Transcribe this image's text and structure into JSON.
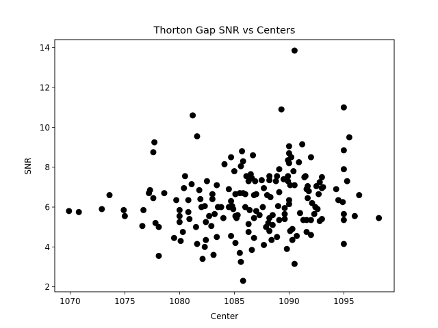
{
  "chart_data": {
    "type": "scatter",
    "title": "Thorton Gap SNR vs Centers",
    "xlabel": "Center",
    "ylabel": "SNR",
    "xlim": [
      1068.6,
      1099.6
    ],
    "ylim": [
      1.75,
      14.4
    ],
    "xticks": [
      1070,
      1075,
      1080,
      1085,
      1090,
      1095
    ],
    "yticks": [
      2,
      4,
      6,
      8,
      10,
      12,
      14
    ],
    "grid": false,
    "legend": "none",
    "marker_color": "#000000",
    "points": [
      [
        1069.9,
        5.8
      ],
      [
        1070.8,
        5.75
      ],
      [
        1072.9,
        5.9
      ],
      [
        1073.6,
        6.6
      ],
      [
        1074.9,
        5.85
      ],
      [
        1075.0,
        5.55
      ],
      [
        1076.6,
        5.05
      ],
      [
        1076.7,
        5.85
      ],
      [
        1077.2,
        6.7
      ],
      [
        1077.3,
        6.85
      ],
      [
        1077.6,
        6.45
      ],
      [
        1077.6,
        8.75
      ],
      [
        1077.7,
        9.25
      ],
      [
        1077.8,
        5.2
      ],
      [
        1078.1,
        5.0
      ],
      [
        1078.1,
        3.55
      ],
      [
        1078.6,
        6.7
      ],
      [
        1079.5,
        4.45
      ],
      [
        1079.7,
        6.35
      ],
      [
        1080.0,
        5.85
      ],
      [
        1080.0,
        5.25
      ],
      [
        1080.0,
        5.55
      ],
      [
        1080.1,
        4.3
      ],
      [
        1080.3,
        4.75
      ],
      [
        1080.4,
        6.95
      ],
      [
        1080.5,
        7.55
      ],
      [
        1080.8,
        5.75
      ],
      [
        1080.8,
        6.35
      ],
      [
        1080.9,
        5.4
      ],
      [
        1081.1,
        7.15
      ],
      [
        1081.2,
        10.6
      ],
      [
        1081.5,
        5.0
      ],
      [
        1081.6,
        9.55
      ],
      [
        1081.6,
        4.15
      ],
      [
        1081.8,
        6.85
      ],
      [
        1081.9,
        6.4
      ],
      [
        1082.0,
        6.0
      ],
      [
        1082.1,
        3.4
      ],
      [
        1082.3,
        4.0
      ],
      [
        1082.3,
        6.05
      ],
      [
        1082.4,
        5.25
      ],
      [
        1082.4,
        4.35
      ],
      [
        1082.5,
        7.3
      ],
      [
        1082.7,
        5.55
      ],
      [
        1082.9,
        5.05
      ],
      [
        1083.0,
        6.65
      ],
      [
        1083.0,
        6.4
      ],
      [
        1083.1,
        3.6
      ],
      [
        1083.2,
        5.65
      ],
      [
        1083.4,
        4.5
      ],
      [
        1083.4,
        7.1
      ],
      [
        1083.5,
        6.0
      ],
      [
        1083.8,
        6.0
      ],
      [
        1084.0,
        5.45
      ],
      [
        1084.1,
        8.15
      ],
      [
        1084.5,
        6.0
      ],
      [
        1084.5,
        6.9
      ],
      [
        1084.7,
        4.55
      ],
      [
        1084.7,
        6.3
      ],
      [
        1084.7,
        8.5
      ],
      [
        1084.8,
        6.05
      ],
      [
        1084.9,
        5.9
      ],
      [
        1085.0,
        7.8
      ],
      [
        1085.1,
        4.2
      ],
      [
        1085.1,
        6.65
      ],
      [
        1085.1,
        5.55
      ],
      [
        1085.2,
        5.45
      ],
      [
        1085.3,
        5.6
      ],
      [
        1085.5,
        3.7
      ],
      [
        1085.5,
        6.7
      ],
      [
        1085.6,
        3.25
      ],
      [
        1085.6,
        8.05
      ],
      [
        1085.7,
        8.8
      ],
      [
        1085.8,
        8.3
      ],
      [
        1085.8,
        6.7
      ],
      [
        1085.8,
        2.3
      ],
      [
        1086.0,
        6.65
      ],
      [
        1086.0,
        6.0
      ],
      [
        1086.1,
        7.55
      ],
      [
        1086.3,
        7.3
      ],
      [
        1086.3,
        5.15
      ],
      [
        1086.3,
        4.75
      ],
      [
        1086.4,
        5.85
      ],
      [
        1086.5,
        7.65
      ],
      [
        1086.6,
        7.45
      ],
      [
        1086.6,
        3.85
      ],
      [
        1086.7,
        8.6
      ],
      [
        1086.8,
        4.45
      ],
      [
        1086.8,
        5.45
      ],
      [
        1086.8,
        6.6
      ],
      [
        1086.9,
        7.3
      ],
      [
        1087.0,
        6.65
      ],
      [
        1087.0,
        5.8
      ],
      [
        1087.3,
        5.6
      ],
      [
        1087.5,
        7.35
      ],
      [
        1087.6,
        6.0
      ],
      [
        1087.7,
        4.1
      ],
      [
        1087.7,
        6.95
      ],
      [
        1087.9,
        5.0
      ],
      [
        1088.0,
        6.6
      ],
      [
        1088.1,
        5.2
      ],
      [
        1088.2,
        5.45
      ],
      [
        1088.2,
        4.8
      ],
      [
        1088.2,
        7.35
      ],
      [
        1088.2,
        7.55
      ],
      [
        1088.3,
        6.5
      ],
      [
        1088.4,
        4.35
      ],
      [
        1088.5,
        5.1
      ],
      [
        1088.5,
        5.6
      ],
      [
        1088.8,
        7.3
      ],
      [
        1088.9,
        4.5
      ],
      [
        1088.9,
        7.55
      ],
      [
        1089.0,
        6.05
      ],
      [
        1089.1,
        6.75
      ],
      [
        1089.1,
        5.35
      ],
      [
        1089.1,
        7.9
      ],
      [
        1089.3,
        10.9
      ],
      [
        1089.5,
        7.4
      ],
      [
        1089.6,
        5.65
      ],
      [
        1089.6,
        5.4
      ],
      [
        1089.6,
        5.95
      ],
      [
        1089.8,
        3.9
      ],
      [
        1089.9,
        7.55
      ],
      [
        1089.9,
        8.35
      ],
      [
        1089.9,
        7.3
      ],
      [
        1090.0,
        9.05
      ],
      [
        1090.0,
        8.7
      ],
      [
        1090.0,
        8.2
      ],
      [
        1090.0,
        6.35
      ],
      [
        1090.0,
        6.15
      ],
      [
        1090.1,
        7.1
      ],
      [
        1090.1,
        4.8
      ],
      [
        1090.2,
        8.5
      ],
      [
        1090.3,
        4.35
      ],
      [
        1090.3,
        4.9
      ],
      [
        1090.4,
        7.8
      ],
      [
        1090.5,
        3.15
      ],
      [
        1090.5,
        7.1
      ],
      [
        1090.5,
        13.85
      ],
      [
        1090.7,
        4.55
      ],
      [
        1090.9,
        8.25
      ],
      [
        1091.0,
        5.7
      ],
      [
        1091.2,
        9.15
      ],
      [
        1091.3,
        5.35
      ],
      [
        1091.4,
        7.5
      ],
      [
        1091.5,
        7.55
      ],
      [
        1091.6,
        6.9
      ],
      [
        1091.6,
        4.75
      ],
      [
        1091.6,
        5.35
      ],
      [
        1091.7,
        6.45
      ],
      [
        1091.7,
        7.05
      ],
      [
        1091.8,
        6.8
      ],
      [
        1092.0,
        8.5
      ],
      [
        1092.0,
        5.35
      ],
      [
        1092.0,
        4.6
      ],
      [
        1092.1,
        6.2
      ],
      [
        1092.3,
        5.65
      ],
      [
        1092.4,
        6.0
      ],
      [
        1092.5,
        7.05
      ],
      [
        1092.6,
        5.9
      ],
      [
        1092.7,
        6.65
      ],
      [
        1092.8,
        5.3
      ],
      [
        1092.8,
        7.25
      ],
      [
        1093.0,
        7.5
      ],
      [
        1093.0,
        5.4
      ],
      [
        1093.0,
        6.95
      ],
      [
        1093.1,
        7.0
      ],
      [
        1094.3,
        6.9
      ],
      [
        1094.5,
        6.35
      ],
      [
        1094.9,
        6.25
      ],
      [
        1095.0,
        11.0
      ],
      [
        1095.0,
        8.85
      ],
      [
        1095.0,
        7.9
      ],
      [
        1095.0,
        5.35
      ],
      [
        1095.0,
        5.65
      ],
      [
        1095.0,
        4.15
      ],
      [
        1095.3,
        7.3
      ],
      [
        1095.5,
        9.5
      ],
      [
        1096.0,
        5.55
      ],
      [
        1096.4,
        6.6
      ],
      [
        1098.2,
        5.45
      ]
    ]
  }
}
